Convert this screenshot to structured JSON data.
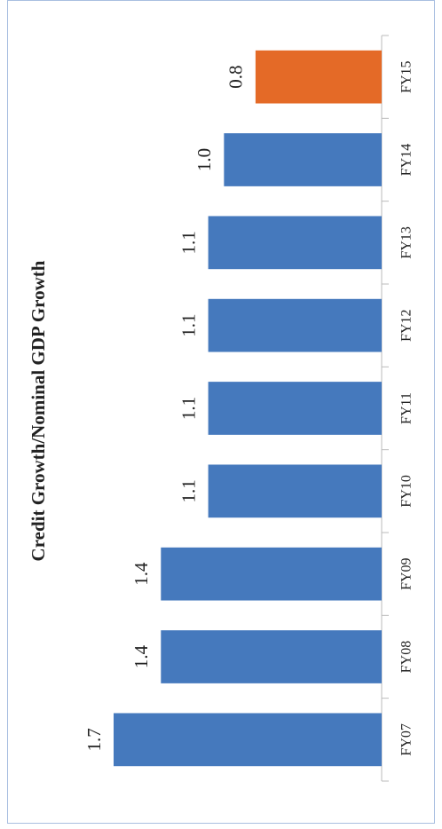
{
  "chart_data": {
    "type": "bar",
    "orientation": "rotated",
    "title": "Credit Growth/Nominal GDP Growth",
    "categories": [
      "FY07",
      "FY08",
      "FY09",
      "FY10",
      "FY11",
      "FY12",
      "FY13",
      "FY14",
      "FY15"
    ],
    "values": [
      1.7,
      1.4,
      1.4,
      1.1,
      1.1,
      1.1,
      1.1,
      1.0,
      0.8
    ],
    "value_labels": [
      "1.7",
      "1.4",
      "1.4",
      "1.1",
      "1.1",
      "1.1",
      "1.1",
      "1.0",
      "0.8"
    ],
    "colors": [
      "#4579bd",
      "#4579bd",
      "#4579bd",
      "#4579bd",
      "#4579bd",
      "#4579bd",
      "#4579bd",
      "#4579bd",
      "#e46a27"
    ],
    "ylim": [
      0,
      1.7
    ]
  }
}
